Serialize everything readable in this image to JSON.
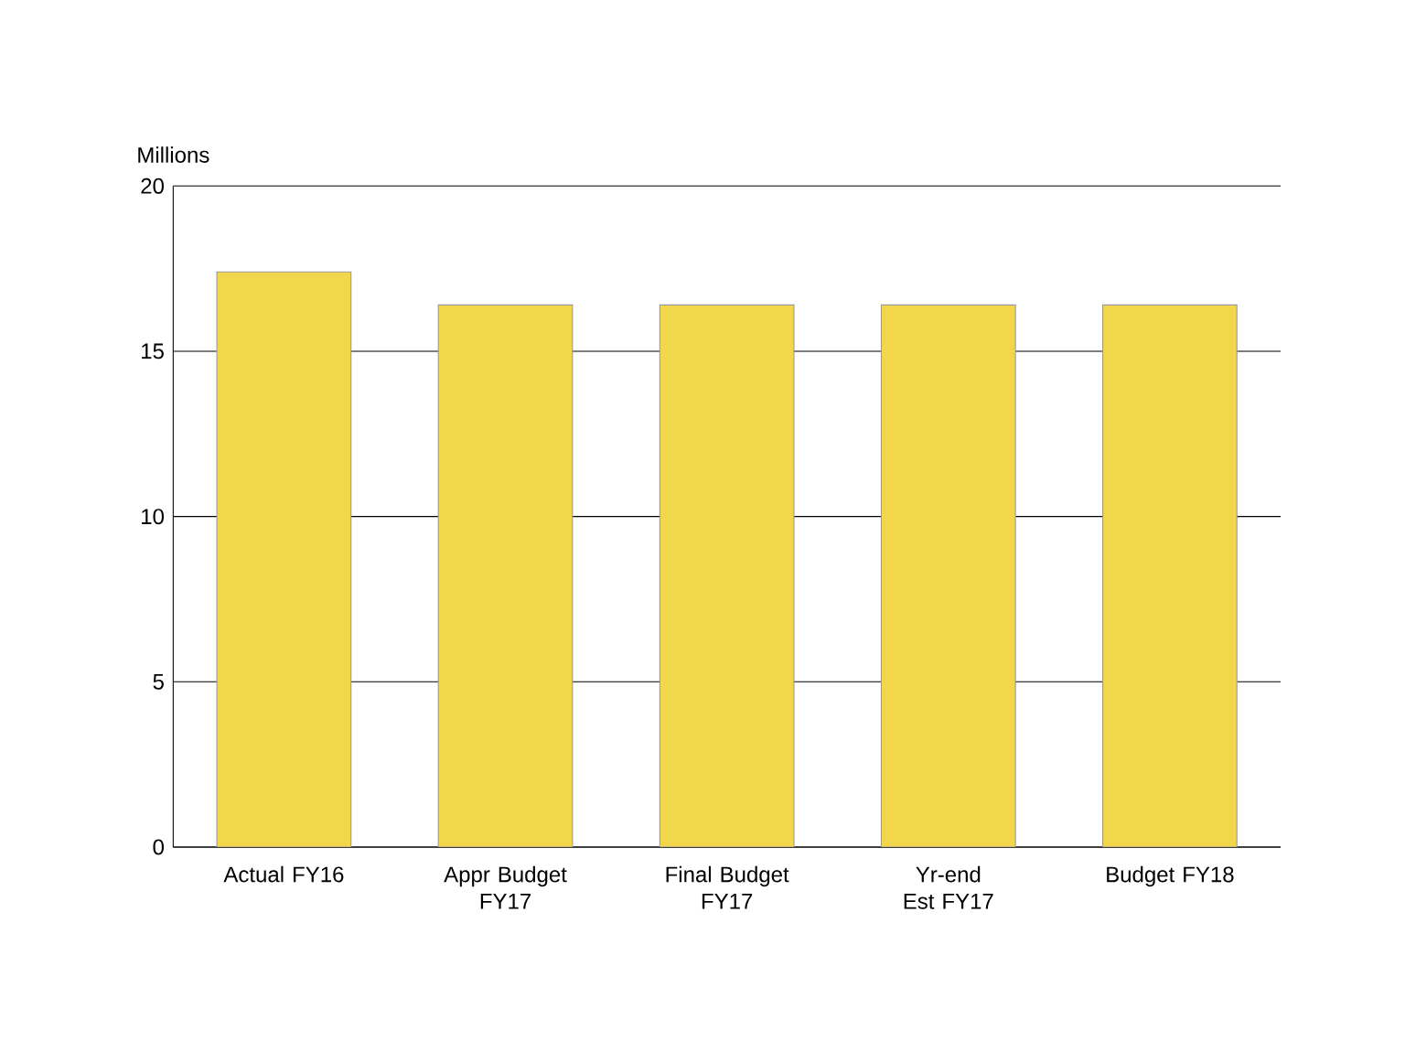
{
  "chart_data": {
    "type": "bar",
    "ylabel": "Millions",
    "categories": [
      "Actual FY16",
      "Appr Budget FY17",
      "Final Budget FY17",
      "Yr-end Est FY17",
      "Budget FY18"
    ],
    "values": [
      17.4,
      16.4,
      16.4,
      16.4,
      16.4
    ],
    "color": "#f2d64b",
    "ylim": [
      0,
      20
    ],
    "yticks": [
      0,
      5,
      10,
      15,
      20
    ],
    "grid": "y"
  }
}
